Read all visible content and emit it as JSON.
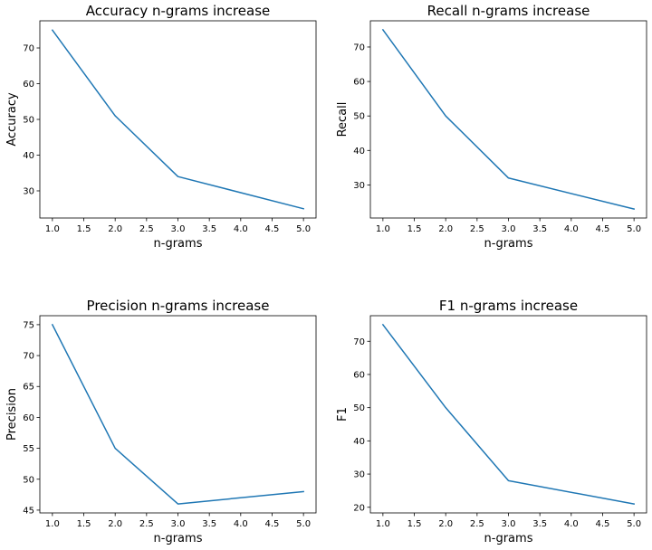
{
  "chart_data": [
    {
      "type": "line",
      "title": "Accuracy n-grams increase",
      "xlabel": "n-grams",
      "ylabel": "Accuracy",
      "x": [
        1,
        2,
        3,
        5
      ],
      "series": [
        {
          "values": [
            75,
            51,
            34,
            25
          ]
        }
      ],
      "xlim": [
        0.8,
        5.2
      ],
      "ylim": [
        22.4,
        77.6
      ],
      "xticks": [
        1.0,
        1.5,
        2.0,
        2.5,
        3.0,
        3.5,
        4.0,
        4.5,
        5.0
      ],
      "xtick_labels": [
        "1.0",
        "1.5",
        "2.0",
        "2.5",
        "3.0",
        "3.5",
        "4.0",
        "4.5",
        "5.0"
      ],
      "yticks": [
        30,
        40,
        50,
        60,
        70
      ],
      "ytick_labels": [
        "30",
        "40",
        "50",
        "60",
        "70"
      ],
      "grid": false,
      "line_color": "#1f77b4"
    },
    {
      "type": "line",
      "title": "Recall n-grams increase",
      "xlabel": "n-grams",
      "ylabel": "Recall",
      "x": [
        1,
        2,
        3,
        5
      ],
      "series": [
        {
          "values": [
            75,
            50,
            32,
            23
          ]
        }
      ],
      "xlim": [
        0.8,
        5.2
      ],
      "ylim": [
        20.4,
        77.6
      ],
      "xticks": [
        1.0,
        1.5,
        2.0,
        2.5,
        3.0,
        3.5,
        4.0,
        4.5,
        5.0
      ],
      "xtick_labels": [
        "1.0",
        "1.5",
        "2.0",
        "2.5",
        "3.0",
        "3.5",
        "4.0",
        "4.5",
        "5.0"
      ],
      "yticks": [
        30,
        40,
        50,
        60,
        70
      ],
      "ytick_labels": [
        "30",
        "40",
        "50",
        "60",
        "70"
      ],
      "grid": false,
      "line_color": "#1f77b4"
    },
    {
      "type": "line",
      "title": "Precision n-grams increase",
      "xlabel": "n-grams",
      "ylabel": "Precision",
      "x": [
        1,
        2,
        3,
        5
      ],
      "series": [
        {
          "values": [
            75,
            55,
            46,
            48
          ]
        }
      ],
      "xlim": [
        0.8,
        5.2
      ],
      "ylim": [
        44.55,
        76.45
      ],
      "xticks": [
        1.0,
        1.5,
        2.0,
        2.5,
        3.0,
        3.5,
        4.0,
        4.5,
        5.0
      ],
      "xtick_labels": [
        "1.0",
        "1.5",
        "2.0",
        "2.5",
        "3.0",
        "3.5",
        "4.0",
        "4.5",
        "5.0"
      ],
      "yticks": [
        45,
        50,
        55,
        60,
        65,
        70,
        75
      ],
      "ytick_labels": [
        "45",
        "50",
        "55",
        "60",
        "65",
        "70",
        "75"
      ],
      "grid": false,
      "line_color": "#1f77b4"
    },
    {
      "type": "line",
      "title": "F1 n-grams increase",
      "xlabel": "n-grams",
      "ylabel": "F1",
      "x": [
        1,
        2,
        3,
        5
      ],
      "series": [
        {
          "values": [
            75,
            50,
            28,
            21
          ]
        }
      ],
      "xlim": [
        0.8,
        5.2
      ],
      "ylim": [
        18.3,
        77.7
      ],
      "xticks": [
        1.0,
        1.5,
        2.0,
        2.5,
        3.0,
        3.5,
        4.0,
        4.5,
        5.0
      ],
      "xtick_labels": [
        "1.0",
        "1.5",
        "2.0",
        "2.5",
        "3.0",
        "3.5",
        "4.0",
        "4.5",
        "5.0"
      ],
      "yticks": [
        20,
        30,
        40,
        50,
        60,
        70
      ],
      "ytick_labels": [
        "20",
        "30",
        "40",
        "50",
        "60",
        "70"
      ],
      "grid": false,
      "line_color": "#1f77b4"
    }
  ]
}
